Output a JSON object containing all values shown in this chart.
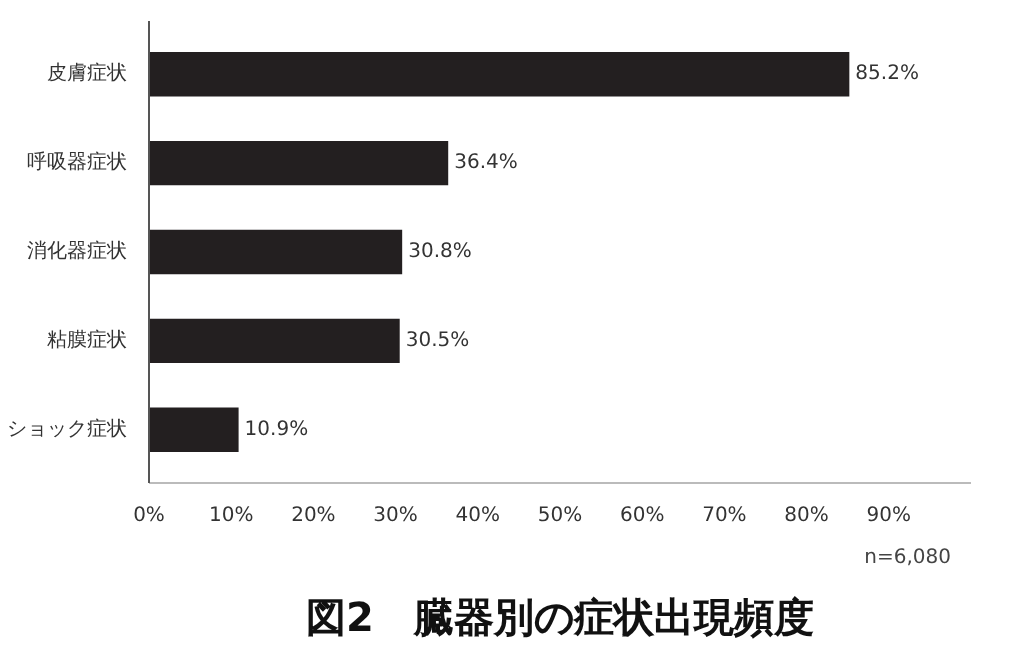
{
  "chart_data": {
    "type": "bar",
    "orientation": "horizontal",
    "title": "図2　臓器別の症状出現頻度",
    "categories": [
      "皮膚症状",
      "呼吸器症状",
      "消化器症状",
      "粘膜症状",
      "ショック症状"
    ],
    "values": [
      85.2,
      36.4,
      30.8,
      30.5,
      10.9
    ],
    "color": "#231f20",
    "value_labels": [
      "85.2%",
      "36.4%",
      "30.8%",
      "30.5%",
      "10.9%"
    ],
    "xlim": [
      0,
      100
    ],
    "xticks": [
      {
        "value": 0,
        "label": "0%"
      },
      {
        "value": 10,
        "label": "10%"
      },
      {
        "value": 20,
        "label": "20%"
      },
      {
        "value": 30,
        "label": "30%"
      },
      {
        "value": 40,
        "label": "40%"
      },
      {
        "value": 50,
        "label": "50%"
      },
      {
        "value": 60,
        "label": "60%"
      },
      {
        "value": 70,
        "label": "70%"
      },
      {
        "value": 80,
        "label": "80%"
      },
      {
        "value": 90,
        "label": "90%"
      }
    ],
    "annotations": [
      "n=6,080"
    ],
    "grid": false
  }
}
